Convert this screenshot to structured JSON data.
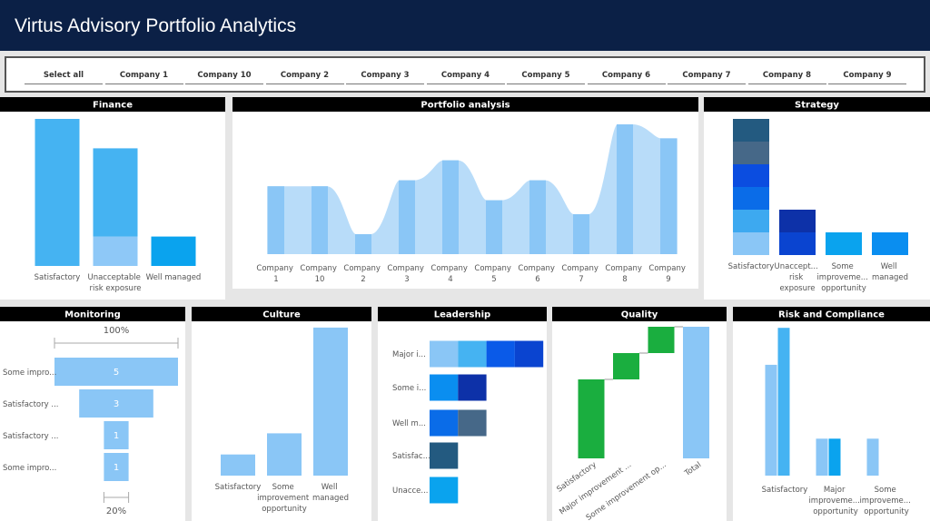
{
  "header": {
    "title": "Virtus Advisory Portfolio Analytics"
  },
  "tabs": [
    "Select all",
    "Company 1",
    "Company 10",
    "Company 2",
    "Company 3",
    "Company 4",
    "Company 5",
    "Company 6",
    "Company 7",
    "Company 8",
    "Company 9"
  ],
  "chart_data": [
    {
      "type": "stacked-bar",
      "title": "Finance",
      "categories": [
        "Satisfactory",
        "Unacceptable risk exposure",
        "Well managed"
      ],
      "series": [
        {
          "values": [
            5,
            1,
            1
          ],
          "colors": [
            "#45b3f2",
            "#8ec8f7",
            "#0aa3ee"
          ]
        },
        {
          "values": [
            null,
            3,
            null
          ],
          "colors": [
            null,
            "#45b3f2",
            null
          ]
        }
      ]
    },
    {
      "type": "area-bar",
      "title": "Portfolio analysis",
      "categories": [
        "Company 1",
        "Company 10",
        "Company 2",
        "Company 3",
        "Company 4",
        "Company 5",
        "Company 6",
        "Company 7",
        "Company 8",
        "Company 9"
      ],
      "values": [
        3.4,
        3.4,
        1,
        3.7,
        4.7,
        2.7,
        3.7,
        2,
        6.5,
        5.8
      ],
      "color": "#8ac6f6",
      "area_color": "#b8dcf9"
    },
    {
      "type": "stacked-bar",
      "title": "Strategy",
      "categories": [
        "Satisfactory",
        "Unaccept... risk exposure",
        "Some improveme... opportunity",
        "Well managed"
      ],
      "series": [
        {
          "values": [
            1,
            1,
            1,
            1
          ],
          "colors": [
            "#8ac6f6",
            "#0a44d0",
            "#0aa3ee",
            "#0a8ef0"
          ]
        },
        {
          "values": [
            1,
            1,
            null,
            null
          ],
          "colors": [
            "#3da9f0",
            "#0d31a8",
            null,
            null
          ]
        },
        {
          "values": [
            1,
            null,
            null,
            null
          ],
          "colors": [
            "#0a6ce8",
            null,
            null,
            null
          ]
        },
        {
          "values": [
            1,
            null,
            null,
            null
          ],
          "colors": [
            "#0b4de0",
            null,
            null,
            null
          ]
        },
        {
          "values": [
            1,
            null,
            null,
            null
          ],
          "colors": [
            "#466888",
            null,
            null,
            null
          ]
        },
        {
          "values": [
            1,
            null,
            null,
            null
          ],
          "colors": [
            "#235a80",
            null,
            null,
            null
          ]
        }
      ]
    },
    {
      "type": "funnel",
      "title": "Monitoring",
      "categories": [
        "Some impro...",
        "Satisfactory ...",
        "Satisfactory ...",
        "Some impro..."
      ],
      "values": [
        5,
        3,
        1,
        1
      ],
      "color": "#8ac6f6",
      "top_label": "100%",
      "bottom_label": "20%"
    },
    {
      "type": "stacked-bar",
      "title": "Culture",
      "categories": [
        "Satisfactory",
        "Some improvement opportunity",
        "Well managed"
      ],
      "values": [
        1,
        2,
        7
      ],
      "color": "#8ac6f6"
    },
    {
      "type": "hbar-stacked",
      "title": "Leadership",
      "categories": [
        "Major i...",
        "Some i...",
        "Well m...",
        "Satisfac...",
        "Unacce..."
      ],
      "series": [
        {
          "values": [
            1,
            1,
            1,
            1,
            1
          ],
          "colors": [
            "#8ac6f6",
            "#0a8ef0",
            "#0a6ce8",
            "#235a80",
            "#0aa3ee"
          ]
        },
        {
          "values": [
            1,
            1,
            1,
            null,
            null
          ],
          "colors": [
            "#45b3f2",
            "#0d31a8",
            "#466888",
            null,
            null
          ]
        },
        {
          "values": [
            1,
            null,
            null,
            null,
            null
          ],
          "colors": [
            "#0a5ae8",
            null,
            null,
            null,
            null
          ]
        },
        {
          "values": [
            1,
            null,
            null,
            null,
            null
          ],
          "colors": [
            "#0a44d0",
            null,
            null,
            null,
            null
          ]
        }
      ]
    },
    {
      "type": "waterfall",
      "title": "Quality",
      "categories": [
        "Satisfactory",
        "Major improvement ...",
        "Some improvement op...",
        "Total"
      ],
      "values": [
        3,
        1,
        1,
        5
      ],
      "total": [
        false,
        false,
        false,
        true
      ],
      "increase_color": "#1aae3f",
      "total_color": "#8ac6f6"
    },
    {
      "type": "grouped-bar",
      "title": "Risk and Compliance",
      "categories": [
        "Satisfactory",
        "Major improveme... opportunity",
        "Some improveme... opportunity"
      ],
      "series": [
        {
          "values": [
            3,
            1,
            1
          ],
          "colors": [
            "#8ac6f6",
            "#8ac6f6",
            "#8ac6f6"
          ]
        },
        {
          "values": [
            4,
            1,
            null
          ],
          "colors": [
            "#45b3f2",
            "#0aa3ee",
            null
          ]
        }
      ]
    }
  ]
}
